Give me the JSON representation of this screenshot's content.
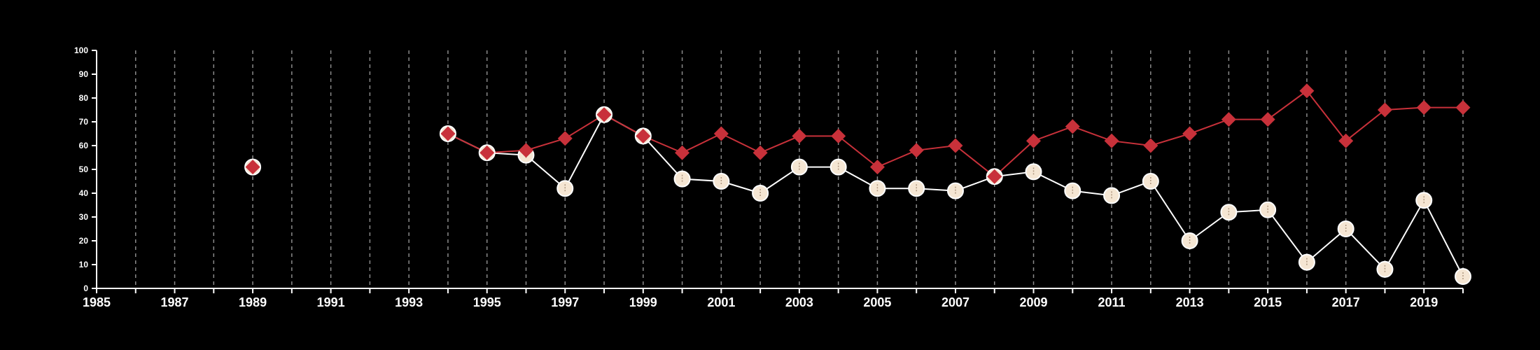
{
  "chart_data": {
    "type": "line",
    "title": "",
    "xlabel": "",
    "ylabel": "",
    "xlim": [
      1985,
      2020
    ],
    "ylim": [
      0,
      100
    ],
    "x_ticks": [
      1985,
      1987,
      1989,
      1991,
      1993,
      1995,
      1997,
      1999,
      2001,
      2003,
      2005,
      2007,
      2009,
      2011,
      2013,
      2015,
      2017,
      2019
    ],
    "y_ticks": [
      0,
      10,
      20,
      30,
      40,
      50,
      60,
      70,
      80,
      90,
      100
    ],
    "grid": "vertical dashed lines at every year",
    "legend": "none",
    "background_color": "#000000",
    "series": [
      {
        "marker": "circle",
        "color": "#ffffff",
        "marker_fill": "#f5e6d3",
        "points": [
          [
            1989,
            51
          ],
          [
            1994,
            65
          ],
          [
            1995,
            57
          ],
          [
            1996,
            56
          ],
          [
            1997,
            42
          ],
          [
            1998,
            73
          ],
          [
            1999,
            64
          ],
          [
            2000,
            46
          ],
          [
            2001,
            45
          ],
          [
            2002,
            40
          ],
          [
            2003,
            51
          ],
          [
            2004,
            51
          ],
          [
            2005,
            42
          ],
          [
            2006,
            42
          ],
          [
            2007,
            41
          ],
          [
            2008,
            47
          ],
          [
            2009,
            49
          ],
          [
            2010,
            41
          ],
          [
            2011,
            39
          ],
          [
            2012,
            45
          ],
          [
            2013,
            20
          ],
          [
            2014,
            32
          ],
          [
            2015,
            33
          ],
          [
            2016,
            11
          ],
          [
            2017,
            25
          ],
          [
            2018,
            8
          ],
          [
            2019,
            37
          ],
          [
            2020,
            5
          ]
        ]
      },
      {
        "marker": "diamond",
        "color": "#c8313a",
        "marker_fill": "#c8313a",
        "points": [
          [
            1989,
            51
          ],
          [
            1994,
            65
          ],
          [
            1995,
            57
          ],
          [
            1996,
            58
          ],
          [
            1997,
            63
          ],
          [
            1998,
            73
          ],
          [
            1999,
            64
          ],
          [
            2000,
            57
          ],
          [
            2001,
            65
          ],
          [
            2002,
            57
          ],
          [
            2003,
            64
          ],
          [
            2004,
            64
          ],
          [
            2005,
            51
          ],
          [
            2006,
            58
          ],
          [
            2007,
            60
          ],
          [
            2008,
            47
          ],
          [
            2009,
            62
          ],
          [
            2010,
            68
          ],
          [
            2011,
            62
          ],
          [
            2012,
            60
          ],
          [
            2013,
            65
          ],
          [
            2014,
            71
          ],
          [
            2015,
            71
          ],
          [
            2016,
            83
          ],
          [
            2017,
            62
          ],
          [
            2018,
            75
          ],
          [
            2019,
            76
          ],
          [
            2020,
            76
          ]
        ]
      }
    ]
  }
}
